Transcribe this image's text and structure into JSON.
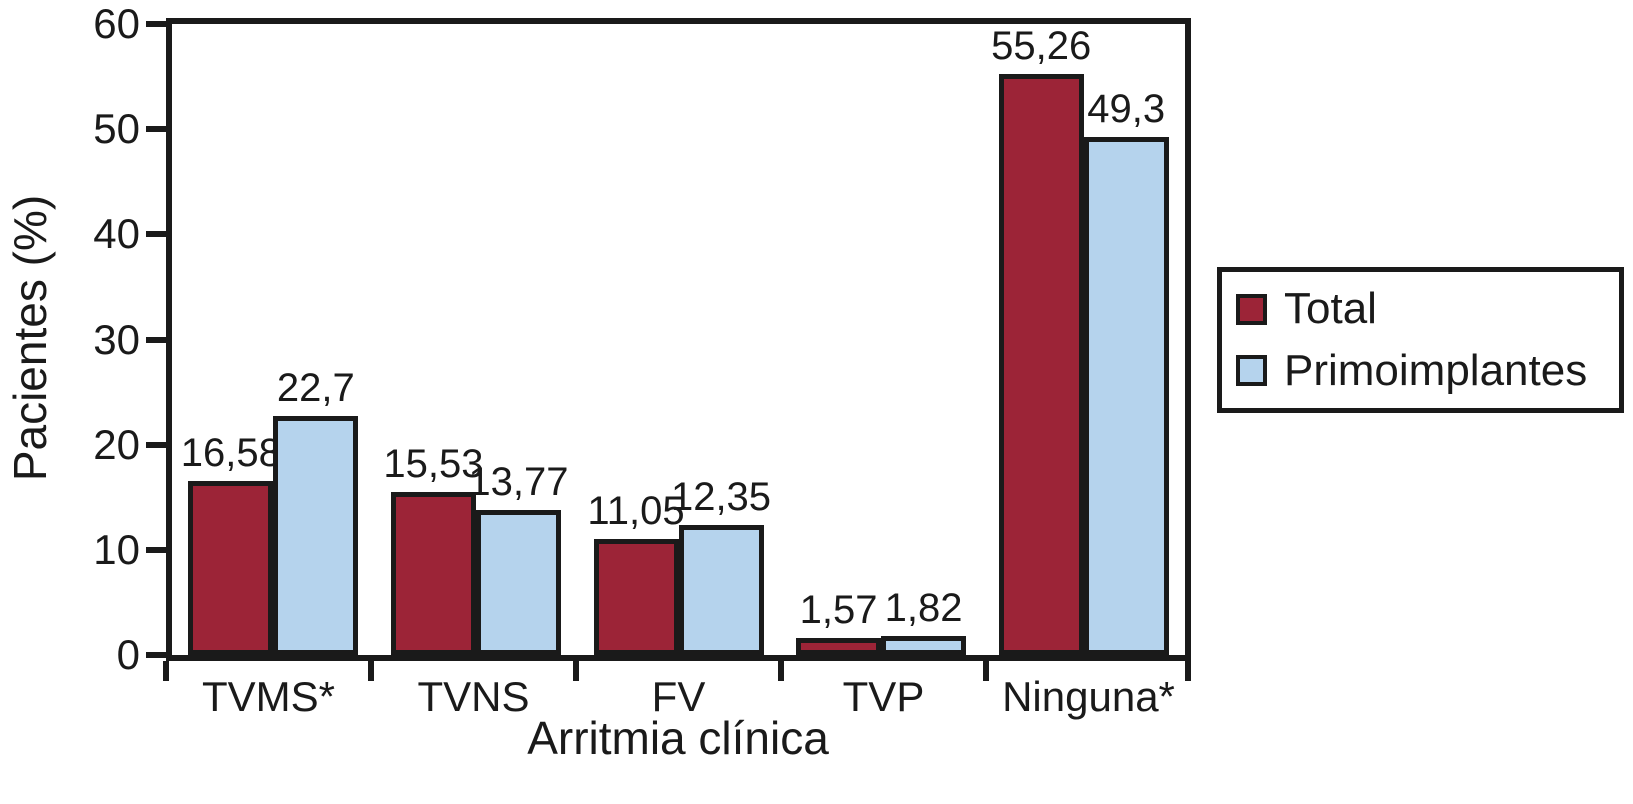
{
  "chart_data": {
    "type": "bar",
    "title": "",
    "xlabel": "Arritmia clínica",
    "ylabel": "Pacientes (%)",
    "categories": [
      "TVMS*",
      "TVNS",
      "FV",
      "TVP",
      "Ninguna*"
    ],
    "series": [
      {
        "name": "Total",
        "color": "#9C2437",
        "values": [
          16.58,
          15.53,
          11.05,
          1.57,
          55.26
        ],
        "value_labels": [
          "16,58",
          "15,53",
          "11,05",
          "1,57",
          "55,26"
        ]
      },
      {
        "name": "Primoimplantes",
        "color": "#B5D3ED",
        "values": [
          22.7,
          13.77,
          12.35,
          1.82,
          49.3
        ],
        "value_labels": [
          "22,7",
          "13,77",
          "12,35",
          "1,82",
          "49,3"
        ]
      }
    ],
    "ylim": [
      0,
      60
    ],
    "yticks": [
      0,
      10,
      20,
      30,
      40,
      50,
      60
    ],
    "ytick_labels": [
      "0",
      "10",
      "20",
      "30",
      "40",
      "50",
      "60"
    ],
    "grid": false,
    "legend_position": "right",
    "axis_color": "#1a1a1a",
    "background_color": "#ffffff"
  }
}
